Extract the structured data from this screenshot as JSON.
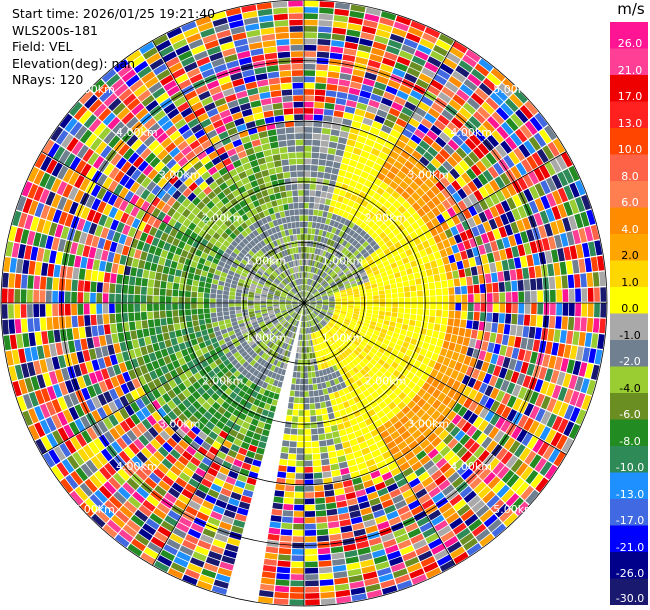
{
  "info": {
    "start_time": "Start time: 2026/01/25 19:21:40",
    "instrument": "WLS200s-181",
    "field": "Field: VEL",
    "elevation": "Elevation(deg): nan",
    "nrays": "NRays: 120"
  },
  "colorbar": {
    "unit": "m/s",
    "ticks": [
      "26.0",
      "21.0",
      "17.0",
      "13.0",
      "10.0",
      "8.0",
      "6.0",
      "4.0",
      "2.0",
      "1.0",
      "0.0",
      "-1.0",
      "-2.0",
      "-4.0",
      "-6.0",
      "-8.0",
      "-10.0",
      "-13.0",
      "-17.0",
      "-21.0",
      "-26.0",
      "-30.0"
    ],
    "colors": [
      "#ff1493",
      "#ff3e96",
      "#ee0000",
      "#ff2020",
      "#ff4500",
      "#ff6347",
      "#ff7f50",
      "#ff8c00",
      "#ffa500",
      "#ffd700",
      "#ffff00",
      "#a9a9a9",
      "#708090",
      "#9acd32",
      "#6b8e23",
      "#228b22",
      "#2e8b57",
      "#1e90ff",
      "#4169e1",
      "#0000ff",
      "#00008b",
      "#191970"
    ]
  },
  "chart_data": {
    "type": "heatmap",
    "subtype": "ppi-polar",
    "field": "VEL",
    "unit": "m/s",
    "n_rays": 120,
    "colorbar_range": [
      -30.0,
      26.0
    ],
    "range_ring_labels": [
      "1.00km",
      "2.00km",
      "3.00km",
      "4.00km",
      "5.00km"
    ],
    "range_ring_km": [
      1,
      2,
      3,
      4,
      5
    ],
    "max_range_km": 5,
    "spokes_deg": [
      0,
      30,
      60,
      90,
      120,
      150,
      180,
      210,
      240,
      270,
      300,
      330
    ],
    "velocity_pattern": {
      "inner_ring_km": [
        0.0,
        1.2
      ],
      "inner_values": "mixed 1.0 to -4.0 (grey/olive) with 2.0 to 4.0 (yellow) lobe to south-east",
      "mid_ring_km": [
        1.2,
        2.8
      ],
      "mid_values": "-4.0 to -6.0 (green) west, 2.0 to 8.0 (yellow/orange) east",
      "outer_ring_km": [
        2.8,
        5.0
      ],
      "outer_values": "noise: random values across full range"
    },
    "missing_sector_deg": [
      190,
      196
    ]
  }
}
